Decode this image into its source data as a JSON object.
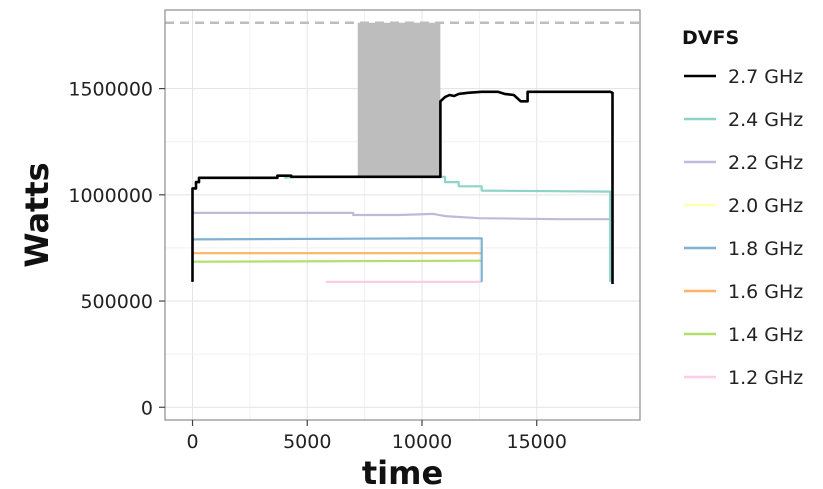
{
  "chart_data": {
    "type": "line",
    "title": "",
    "xlabel": "time",
    "ylabel": "Watts",
    "xlim": [
      -1200,
      19500
    ],
    "ylim": [
      -60000,
      1870000
    ],
    "x_ticks": [
      0,
      5000,
      10000,
      15000
    ],
    "x_tick_labels": [
      "0",
      "5000",
      "10000",
      "15000"
    ],
    "y_ticks": [
      0,
      500000,
      1000000,
      1500000
    ],
    "y_tick_labels": [
      "0",
      "500000",
      "1000000",
      "1500000"
    ],
    "grid": true,
    "legend": {
      "title": "DVFS",
      "position": "right"
    },
    "reference_line": {
      "y": 1810000,
      "style": "dashed",
      "color": "#bdbdbd"
    },
    "shaded_region": {
      "x0": 7200,
      "x1": 10800,
      "y0": 1080000,
      "y1": 1810000,
      "color": "#bdbdbd"
    },
    "series": [
      {
        "name": "2.7 GHz",
        "color": "#000000",
        "points": [
          [
            0,
            590000
          ],
          [
            0,
            1030000
          ],
          [
            150,
            1030000
          ],
          [
            150,
            1060000
          ],
          [
            280,
            1060000
          ],
          [
            280,
            1080000
          ],
          [
            3700,
            1080000
          ],
          [
            3700,
            1090000
          ],
          [
            4300,
            1090000
          ],
          [
            4300,
            1085000
          ],
          [
            10800,
            1085000
          ],
          [
            10800,
            1440000
          ],
          [
            11000,
            1460000
          ],
          [
            11200,
            1470000
          ],
          [
            11400,
            1465000
          ],
          [
            11600,
            1475000
          ],
          [
            12000,
            1480000
          ],
          [
            12600,
            1485000
          ],
          [
            13300,
            1485000
          ],
          [
            13600,
            1475000
          ],
          [
            14000,
            1470000
          ],
          [
            14300,
            1440000
          ],
          [
            14600,
            1440000
          ],
          [
            14600,
            1485000
          ],
          [
            16000,
            1485000
          ],
          [
            18200,
            1485000
          ],
          [
            18300,
            1480000
          ],
          [
            18300,
            580000
          ]
        ]
      },
      {
        "name": "2.4 GHz",
        "color": "#8ed3c7",
        "points": [
          [
            4000,
            1080000
          ],
          [
            4500,
            1085000
          ],
          [
            11000,
            1085000
          ],
          [
            11000,
            1060000
          ],
          [
            11600,
            1060000
          ],
          [
            11600,
            1040000
          ],
          [
            12600,
            1040000
          ],
          [
            12600,
            1020000
          ],
          [
            18200,
            1015000
          ],
          [
            18200,
            590000
          ]
        ]
      },
      {
        "name": "2.2 GHz",
        "color": "#bebada",
        "points": [
          [
            0,
            915000
          ],
          [
            7000,
            915000
          ],
          [
            7000,
            905000
          ],
          [
            9000,
            905000
          ],
          [
            10500,
            910000
          ],
          [
            11000,
            900000
          ],
          [
            12500,
            890000
          ],
          [
            16000,
            885000
          ],
          [
            18200,
            885000
          ]
        ]
      },
      {
        "name": "2.0 GHz",
        "color": "#ffffb3",
        "points": []
      },
      {
        "name": "1.8 GHz",
        "color": "#80b1d3",
        "points": [
          [
            0,
            790000
          ],
          [
            10000,
            795000
          ],
          [
            12600,
            795000
          ],
          [
            12600,
            590000
          ]
        ]
      },
      {
        "name": "1.6 GHz",
        "color": "#fdb462",
        "points": [
          [
            0,
            725000
          ],
          [
            12600,
            725000
          ]
        ]
      },
      {
        "name": "1.4 GHz",
        "color": "#b3de69",
        "points": [
          [
            0,
            685000
          ],
          [
            12600,
            690000
          ]
        ]
      },
      {
        "name": "1.2 GHz",
        "color": "#fccde5",
        "points": [
          [
            5800,
            590000
          ],
          [
            12600,
            590000
          ]
        ]
      }
    ]
  }
}
